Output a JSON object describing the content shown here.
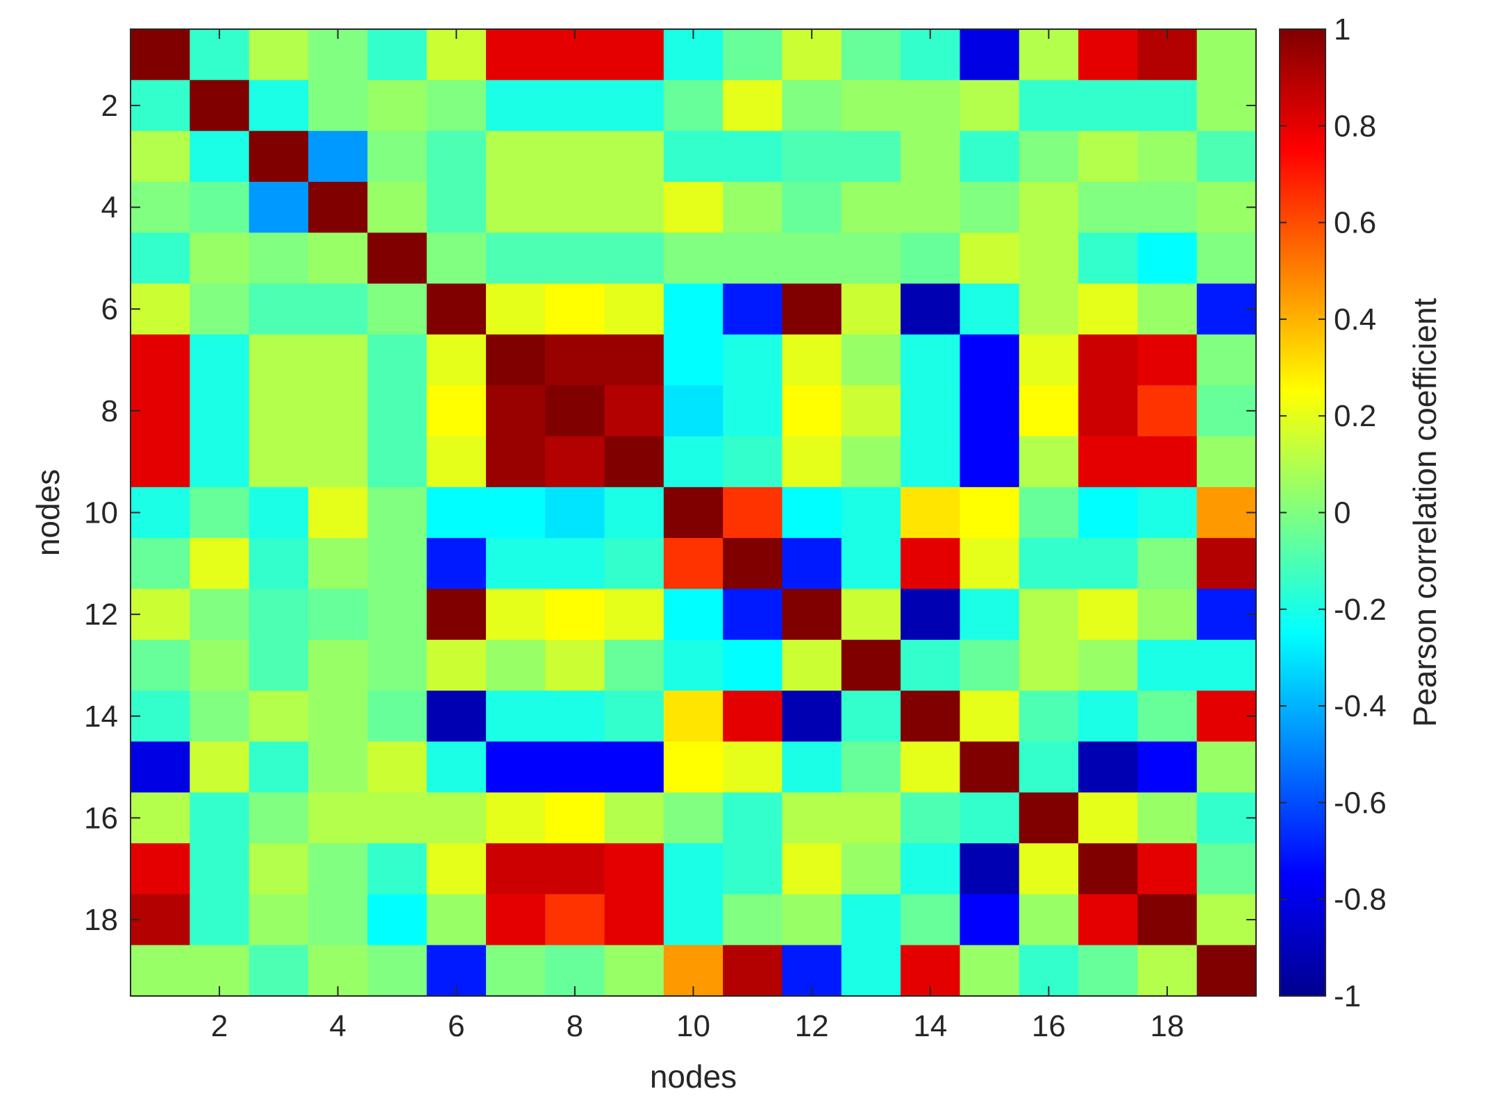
{
  "chart_data": {
    "type": "heatmap",
    "xlabel": "nodes",
    "ylabel": "nodes",
    "colorbar_label": "Pearson correlation coefficient",
    "nodes": [
      1,
      2,
      3,
      4,
      5,
      6,
      7,
      8,
      9,
      10,
      11,
      12,
      13,
      14,
      15,
      16,
      17,
      18,
      19
    ],
    "x_ticks": [
      2,
      4,
      6,
      8,
      10,
      12,
      14,
      16,
      18
    ],
    "y_ticks": [
      2,
      4,
      6,
      8,
      10,
      12,
      14,
      16,
      18
    ],
    "colorbar_ticks": [
      1,
      0.8,
      0.6,
      0.4,
      0.2,
      0,
      -0.2,
      -0.4,
      -0.6,
      -0.8,
      -1
    ],
    "clim": [
      -1,
      1
    ],
    "colormap": "jet",
    "matrix": [
      [
        1.0,
        -0.15,
        0.1,
        0.0,
        -0.15,
        0.15,
        0.8,
        0.8,
        0.8,
        -0.2,
        -0.05,
        0.15,
        -0.05,
        -0.15,
        -0.8,
        0.1,
        0.8,
        0.9,
        0.05
      ],
      [
        -0.15,
        1.0,
        -0.2,
        0.0,
        0.05,
        0.0,
        -0.2,
        -0.2,
        -0.2,
        -0.05,
        0.2,
        0.0,
        0.05,
        0.05,
        0.1,
        -0.15,
        -0.15,
        -0.15,
        0.05
      ],
      [
        0.1,
        -0.2,
        1.0,
        -0.45,
        0.0,
        -0.1,
        0.1,
        0.1,
        0.1,
        -0.15,
        -0.15,
        -0.1,
        -0.1,
        0.05,
        -0.15,
        0.0,
        0.1,
        0.05,
        -0.1
      ],
      [
        0.0,
        -0.05,
        -0.45,
        1.0,
        0.05,
        -0.1,
        0.1,
        0.1,
        0.1,
        0.2,
        0.05,
        -0.05,
        0.05,
        0.05,
        0.0,
        0.1,
        0.0,
        0.0,
        0.05
      ],
      [
        -0.15,
        0.05,
        0.0,
        0.05,
        1.0,
        0.0,
        -0.1,
        -0.1,
        -0.1,
        0.0,
        0.0,
        0.0,
        0.0,
        -0.05,
        0.15,
        0.1,
        -0.15,
        -0.25,
        0.0
      ],
      [
        0.15,
        0.0,
        -0.1,
        -0.1,
        0.0,
        1.0,
        0.2,
        0.25,
        0.2,
        -0.25,
        -0.7,
        1.0,
        0.15,
        -0.9,
        -0.2,
        0.1,
        0.2,
        0.05,
        -0.7
      ],
      [
        0.8,
        -0.2,
        0.1,
        0.1,
        -0.1,
        0.2,
        1.0,
        0.95,
        0.95,
        -0.25,
        -0.2,
        0.2,
        0.05,
        -0.2,
        -0.75,
        0.2,
        0.85,
        0.8,
        0.0
      ],
      [
        0.8,
        -0.2,
        0.1,
        0.1,
        -0.1,
        0.25,
        0.95,
        1.0,
        0.9,
        -0.3,
        -0.2,
        0.25,
        0.15,
        -0.2,
        -0.75,
        0.25,
        0.85,
        0.65,
        -0.05
      ],
      [
        0.8,
        -0.2,
        0.1,
        0.1,
        -0.1,
        0.2,
        0.95,
        0.9,
        1.0,
        -0.2,
        -0.15,
        0.2,
        0.05,
        -0.2,
        -0.75,
        0.1,
        0.8,
        0.8,
        0.05
      ],
      [
        -0.2,
        -0.05,
        -0.2,
        0.2,
        0.0,
        -0.25,
        -0.25,
        -0.3,
        -0.2,
        1.0,
        0.65,
        -0.25,
        -0.2,
        0.3,
        0.25,
        -0.05,
        -0.25,
        -0.2,
        0.45
      ],
      [
        -0.05,
        0.2,
        -0.15,
        0.05,
        0.0,
        -0.7,
        -0.2,
        -0.2,
        -0.15,
        0.65,
        1.0,
        -0.7,
        -0.2,
        0.8,
        0.2,
        -0.15,
        -0.15,
        0.0,
        0.9
      ],
      [
        0.15,
        0.0,
        -0.1,
        -0.05,
        0.0,
        1.0,
        0.2,
        0.25,
        0.2,
        -0.25,
        -0.7,
        1.0,
        0.15,
        -0.9,
        -0.2,
        0.1,
        0.2,
        0.05,
        -0.7
      ],
      [
        -0.05,
        0.05,
        -0.1,
        0.05,
        0.0,
        0.15,
        0.05,
        0.15,
        -0.05,
        -0.2,
        -0.25,
        0.15,
        1.0,
        -0.15,
        -0.05,
        0.1,
        0.05,
        -0.2,
        -0.2
      ],
      [
        -0.15,
        0.0,
        0.1,
        0.05,
        -0.05,
        -0.9,
        -0.2,
        -0.2,
        -0.15,
        0.3,
        0.8,
        -0.9,
        -0.15,
        1.0,
        0.2,
        -0.1,
        -0.2,
        -0.05,
        0.8
      ],
      [
        -0.8,
        0.15,
        -0.15,
        0.05,
        0.15,
        -0.2,
        -0.75,
        -0.75,
        -0.75,
        0.25,
        0.2,
        -0.2,
        -0.05,
        0.2,
        1.0,
        -0.15,
        -0.9,
        -0.75,
        0.05
      ],
      [
        0.1,
        -0.15,
        0.0,
        0.1,
        0.1,
        0.1,
        0.2,
        0.25,
        0.1,
        0.0,
        -0.15,
        0.1,
        0.1,
        -0.1,
        -0.15,
        1.0,
        0.2,
        0.05,
        -0.15
      ],
      [
        0.8,
        -0.15,
        0.1,
        0.0,
        -0.15,
        0.2,
        0.85,
        0.85,
        0.8,
        -0.2,
        -0.15,
        0.2,
        0.05,
        -0.2,
        -0.9,
        0.2,
        1.0,
        0.8,
        -0.05
      ],
      [
        0.9,
        -0.15,
        0.05,
        0.0,
        -0.25,
        0.05,
        0.8,
        0.65,
        0.8,
        -0.2,
        0.0,
        0.05,
        -0.2,
        -0.05,
        -0.75,
        0.05,
        0.8,
        1.0,
        0.1
      ],
      [
        0.05,
        0.05,
        -0.1,
        0.05,
        0.0,
        -0.7,
        0.0,
        -0.05,
        0.05,
        0.45,
        0.9,
        -0.7,
        -0.2,
        0.8,
        0.05,
        -0.15,
        -0.05,
        0.1,
        1.0
      ]
    ]
  }
}
